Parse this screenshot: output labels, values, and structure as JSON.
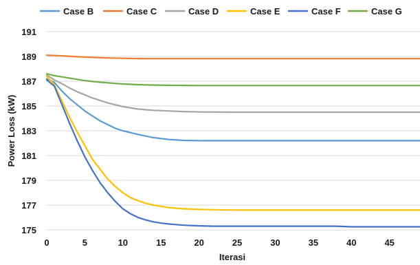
{
  "chart_data": {
    "type": "line",
    "title": "",
    "xlabel": "Iterasi",
    "ylabel": "Power Loss (kW)",
    "xlim": [
      0,
      49
    ],
    "ylim": [
      175,
      191
    ],
    "xticks": [
      0,
      5,
      10,
      15,
      20,
      25,
      30,
      35,
      40,
      45
    ],
    "yticks": [
      175,
      177,
      179,
      181,
      183,
      185,
      187,
      189,
      191
    ],
    "grid": "horizontal",
    "legend_position": "top",
    "series": [
      {
        "name": "Case B",
        "color": "#5b9bd5",
        "x": [
          0,
          1,
          2,
          3,
          4,
          5,
          6,
          7,
          8,
          9,
          10,
          12,
          14,
          16,
          18,
          20,
          25,
          30,
          35,
          40,
          45,
          49
        ],
        "y": [
          187.2,
          186.9,
          186.2,
          185.6,
          185.1,
          184.6,
          184.2,
          183.8,
          183.5,
          183.2,
          183.0,
          182.7,
          182.45,
          182.3,
          182.22,
          182.2,
          182.2,
          182.2,
          182.2,
          182.2,
          182.2,
          182.2
        ]
      },
      {
        "name": "Case C",
        "color": "#ed7d31",
        "x": [
          0,
          2,
          4,
          6,
          8,
          10,
          12,
          15,
          20,
          25,
          30,
          35,
          40,
          45,
          49
        ],
        "y": [
          189.1,
          189.05,
          188.98,
          188.92,
          188.88,
          188.85,
          188.83,
          188.82,
          188.82,
          188.82,
          188.82,
          188.82,
          188.82,
          188.82,
          188.82
        ]
      },
      {
        "name": "Case D",
        "color": "#a5a5a5",
        "x": [
          0,
          1,
          2,
          3,
          4,
          5,
          6,
          7,
          8,
          9,
          10,
          12,
          14,
          16,
          18,
          20,
          25,
          30,
          35,
          40,
          45,
          49
        ],
        "y": [
          187.5,
          187.1,
          186.8,
          186.45,
          186.15,
          185.9,
          185.65,
          185.45,
          185.25,
          185.1,
          184.95,
          184.75,
          184.65,
          184.6,
          184.55,
          184.52,
          184.5,
          184.5,
          184.5,
          184.5,
          184.5,
          184.5
        ]
      },
      {
        "name": "Case E",
        "color": "#ffc000",
        "x": [
          0,
          1,
          2,
          3,
          4,
          5,
          6,
          7,
          8,
          9,
          10,
          11,
          12,
          13,
          14,
          15,
          16,
          18,
          20,
          22,
          25,
          30,
          35,
          40,
          45,
          49
        ],
        "y": [
          187.4,
          186.7,
          185.4,
          184.1,
          182.9,
          181.8,
          180.7,
          179.9,
          179.1,
          178.5,
          178.0,
          177.6,
          177.35,
          177.15,
          177.0,
          176.9,
          176.8,
          176.7,
          176.65,
          176.62,
          176.6,
          176.6,
          176.6,
          176.6,
          176.6,
          176.6
        ]
      },
      {
        "name": "Case  F",
        "color": "#4472c4",
        "x": [
          0,
          1,
          2,
          3,
          4,
          5,
          6,
          7,
          8,
          9,
          10,
          11,
          12,
          13,
          14,
          15,
          16,
          18,
          20,
          22,
          25,
          30,
          35,
          38,
          40,
          45,
          49
        ],
        "y": [
          187.1,
          186.6,
          185.1,
          183.6,
          182.2,
          180.9,
          179.8,
          178.8,
          178.0,
          177.3,
          176.7,
          176.3,
          176.0,
          175.8,
          175.65,
          175.55,
          175.48,
          175.38,
          175.33,
          175.3,
          175.3,
          175.3,
          175.3,
          175.3,
          175.25,
          175.25,
          175.25
        ]
      },
      {
        "name": "Case G",
        "color": "#70ad47",
        "x": [
          0,
          1,
          2,
          3,
          4,
          5,
          6,
          7,
          8,
          9,
          10,
          12,
          14,
          16,
          18,
          20,
          25,
          30,
          35,
          40,
          45,
          49
        ],
        "y": [
          187.6,
          187.45,
          187.35,
          187.25,
          187.15,
          187.05,
          186.98,
          186.92,
          186.87,
          186.82,
          186.78,
          186.72,
          186.69,
          186.67,
          186.66,
          186.65,
          186.65,
          186.65,
          186.65,
          186.65,
          186.65,
          186.65
        ]
      }
    ]
  }
}
